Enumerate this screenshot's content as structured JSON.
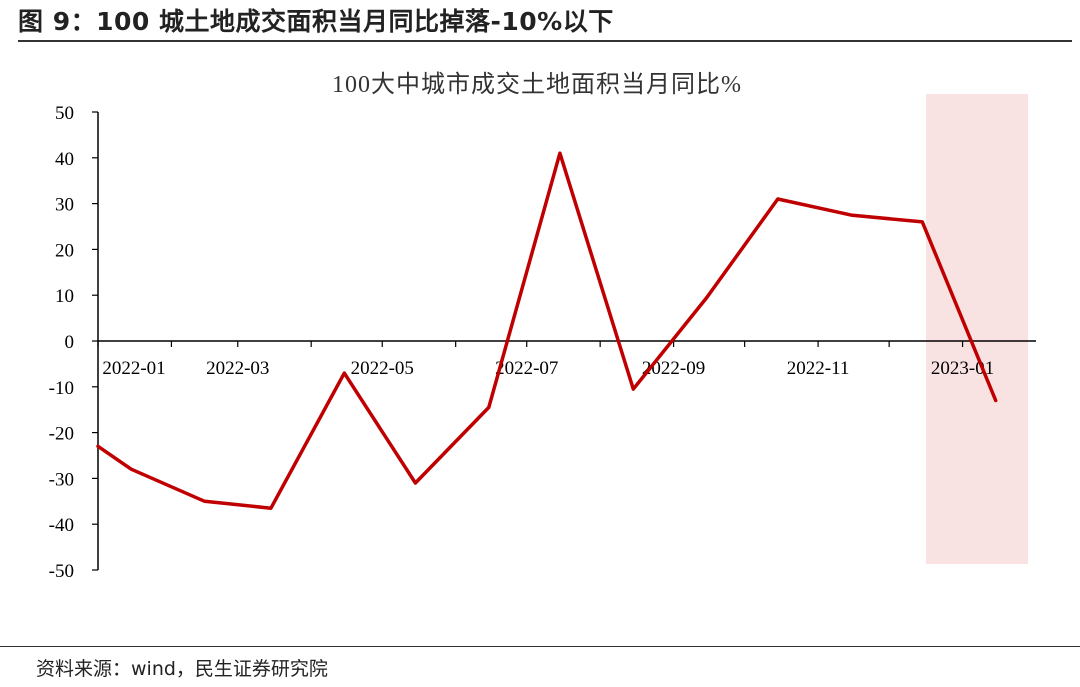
{
  "figure": {
    "title": "图 9：100 城土地成交面积当月同比掉落-10%以下",
    "source": "资料来源：wind，民生证券研究院"
  },
  "chart_data": {
    "type": "line",
    "title": "100大中城市成交土地面积当月同比%",
    "x": [
      "2022-01",
      "2022-02",
      "2022-03",
      "2022-04",
      "2022-05",
      "2022-06",
      "2022-07",
      "2022-08",
      "2022-09",
      "2022-10",
      "2022-11",
      "2022-12",
      "2023-01"
    ],
    "x_weekly_note": "",
    "series": [
      {
        "name": "",
        "color": "#c00000",
        "points": [
          [
            "2022-01-01",
            -23
          ],
          [
            "2022-01-15",
            -28
          ],
          [
            "2022-02-15",
            -35
          ],
          [
            "2022-03-15",
            -36.5
          ],
          [
            "2022-04-15",
            -7
          ],
          [
            "2022-05-15",
            -31
          ],
          [
            "2022-06-15",
            -14.5
          ],
          [
            "2022-07-15",
            41
          ],
          [
            "2022-08-15",
            -10.5
          ],
          [
            "2022-09-15",
            9.5
          ],
          [
            "2022-10-15",
            31
          ],
          [
            "2022-11-15",
            27.5
          ],
          [
            "2022-12-15",
            26
          ],
          [
            "2023-01-15",
            -13
          ]
        ]
      }
    ],
    "xtick_labels": [
      "2022-01",
      "2022-03",
      "2022-05",
      "2022-07",
      "2022-09",
      "2022-11",
      "2023-01"
    ],
    "ytick_labels": [
      "50",
      "40",
      "30",
      "20",
      "10",
      "0",
      "-10",
      "-20",
      "-30",
      "-40",
      "-50"
    ],
    "ylim": [
      -50,
      50
    ],
    "highlight": {
      "from": "2022-12-01",
      "to": "2023-01-31",
      "color": "#f8e2e2"
    },
    "grid": false
  }
}
